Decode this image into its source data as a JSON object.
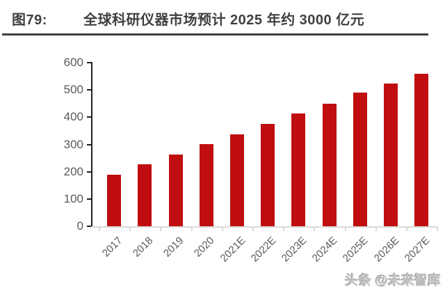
{
  "header": {
    "figure_label": "图79:",
    "title": "全球科研仪器市场预计 2025 年约 3000 亿元"
  },
  "watermark": "头条 @未来智库",
  "colors": {
    "bar": "#C00D10",
    "title_text": "#3F3F3F",
    "divider": "#3F3F3F",
    "axis_label": "#595959",
    "y_axis_line": "#1F1F1F",
    "x_axis_line": "#D9D9D9"
  },
  "chart_data": {
    "type": "bar",
    "categories": [
      "2017",
      "2018",
      "2019",
      "2020",
      "2021E",
      "2022E",
      "2023E",
      "2024E",
      "2025E",
      "2026E",
      "2027E"
    ],
    "values": [
      190,
      226,
      263,
      300,
      337,
      375,
      413,
      450,
      489,
      524,
      560
    ],
    "title": "全球科研仪器市场预计 2025 年约 3000 亿元",
    "xlabel": "",
    "ylabel": "",
    "ylim": [
      0,
      600
    ],
    "yticks": [
      0,
      100,
      200,
      300,
      400,
      500,
      600
    ],
    "grid": false,
    "legend": "none",
    "bar_color": "#C00D10"
  }
}
